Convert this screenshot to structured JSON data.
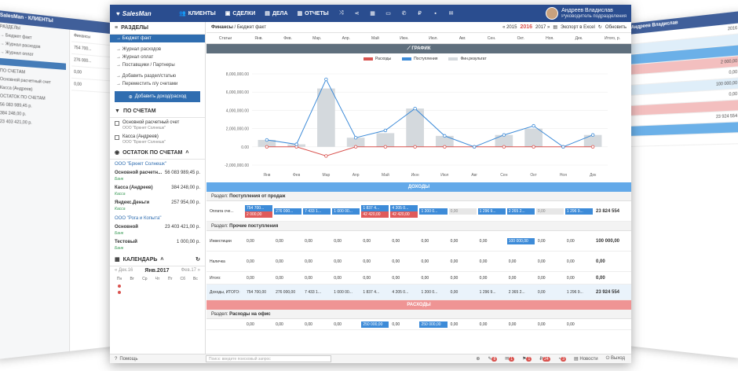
{
  "app": {
    "brand": "SalesMan"
  },
  "nav": [
    {
      "label": "КЛИЕНТЫ",
      "icon": "users-icon"
    },
    {
      "label": "СДЕЛКИ",
      "icon": "briefcase-icon"
    },
    {
      "label": "ДЕЛА",
      "icon": "book-icon"
    },
    {
      "label": "ОТЧЕТЫ",
      "icon": "chart-icon"
    }
  ],
  "user": {
    "name": "Андреев Владислав",
    "role": "Руководитель подразделения"
  },
  "sidebar": {
    "sections_title": "РАЗДЕЛЫ",
    "items": [
      "→ Бюджет факт",
      "→ Журнал расходов",
      "→ Журнал оплат",
      "→ Поставщики / Партнеры",
      "→ Добавить раздел/статью",
      "→ Переместить п/у счетами"
    ],
    "add_button": "Добавить доход/расход",
    "accounts_title": "ПО СЧЕТАМ",
    "accounts": [
      {
        "name": "Основной расчетный счет",
        "org": "ООО \"Бркнет Солнешк\""
      },
      {
        "name": "Касса (Андреев)",
        "org": "ООО \"Бркнет Солнешк\""
      }
    ],
    "balance_title": "ОСТАТОК ПО СЧЕТАМ",
    "orgs": [
      {
        "name": "ООО \"Бркнет Солнешк\"",
        "rows": [
          {
            "label": "Основной расчетн...",
            "value": "56 083 989,45 р.",
            "sub": "Банк"
          },
          {
            "label": "Касса (Андреев)",
            "value": "384 248,00 р.",
            "sub": "Касса"
          },
          {
            "label": "Яндекс.Деньги",
            "value": "257 954,00 р.",
            "sub": "Касса"
          }
        ]
      },
      {
        "name": "ООО \"Рога и Копыта\"",
        "rows": [
          {
            "label": "Основной",
            "value": "23 403 421,00 р.",
            "sub": "Банк"
          },
          {
            "label": "Тестовый",
            "value": "1 000,00 р.",
            "sub": "Банк"
          }
        ]
      }
    ],
    "calendar_title": "КАЛЕНДАРЬ",
    "calendar": {
      "prev": "« Дек.16",
      "month": "Янв.2017",
      "next": "Фев.17 »",
      "days": [
        "Пн",
        "Вт",
        "Ср",
        "Чт",
        "Пт",
        "Сб",
        "Вс"
      ]
    }
  },
  "breadcrumb": {
    "section": "Финансы",
    "page": "Бюджет факт"
  },
  "years": {
    "prev": "« 2015",
    "current": "2016",
    "next": "2017 »"
  },
  "toolbar": {
    "export": "Экспорт в Excel",
    "refresh": "Обновить"
  },
  "table": {
    "first_header": "Статьи",
    "months": [
      "Янв.",
      "Фев.",
      "Мар.",
      "Апр.",
      "Май",
      "Июн.",
      "Июл.",
      "Авг.",
      "Сен.",
      "Окт.",
      "Ноя.",
      "Дек."
    ],
    "last_header": "Итого, р."
  },
  "graph_title": "ГРАФИК",
  "income_title": "ДОХОДЫ",
  "expense_title": "РАСХОДЫ",
  "chart_data": {
    "type": "line",
    "categories": [
      "Янв",
      "Фев",
      "Мар",
      "Апр",
      "Май",
      "Июн",
      "Июл",
      "Авг",
      "Сен",
      "Окт",
      "Ноя",
      "Дек"
    ],
    "series": [
      {
        "name": "Расходы",
        "type": "line",
        "color": "#d9534f",
        "values": [
          0,
          0,
          -1000000,
          0,
          0,
          0,
          0,
          0,
          0,
          0,
          0,
          0
        ]
      },
      {
        "name": "Поступления",
        "type": "line",
        "color": "#3d8bd8",
        "values": [
          755000,
          276000,
          7400000,
          1000000,
          1800000,
          4200000,
          1200000,
          0,
          1300000,
          2300000,
          0,
          1300000
        ]
      },
      {
        "name": "Фин.результат",
        "type": "bar",
        "color": "#d4d9dd",
        "values": [
          755000,
          276000,
          6400000,
          1000000,
          1500000,
          4200000,
          1200000,
          0,
          1300000,
          2000000,
          0,
          1300000
        ]
      }
    ],
    "yticks": [
      "8,000,000.00",
      "6,000,000.00",
      "4,000,000.00",
      "2,000,000.00",
      "0.00",
      "-2,000,000.00"
    ],
    "ylim": [
      -2000000,
      8000000
    ]
  },
  "income": {
    "section1": "Поступления от продаж",
    "oplata_label": "Оплата сче...",
    "oplata_top": [
      "754 700...",
      "276 000...",
      "7 433 1...",
      "1 000 00...",
      "1 837 4...",
      "4 205 0...",
      "1 200 0...",
      "0,00",
      "1 296 9...",
      "2 265 2...",
      "0,00",
      "1 296 9..."
    ],
    "oplata_bot": [
      "2 000,00",
      "",
      "",
      "",
      "42 420,00",
      "42 420,00",
      "",
      "",
      "",
      "",
      "",
      ""
    ],
    "oplata_total": "23 824 554",
    "section2": "Прочие поступления",
    "invest_label": "Инвестиции",
    "invest_top": [
      "0,00",
      "0,00",
      "0,00",
      "0,00",
      "0,00",
      "0,00",
      "0,00",
      "0,00",
      "0,00",
      "100 000,00",
      "0,00",
      "0,00"
    ],
    "invest_total": "100 000,00",
    "cash_label": "Наличка",
    "cash_top": [
      "0,00",
      "0,00",
      "0,00",
      "0,00",
      "0,00",
      "0,00",
      "0,00",
      "0,00",
      "0,00",
      "0,00",
      "0,00",
      "0,00"
    ],
    "cash_total": "0,00",
    "itogo_label": "Итого:",
    "itogo": [
      "0,00",
      "0,00",
      "0,00",
      "0,00",
      "0,00",
      "0,00",
      "0,00",
      "0,00",
      "0,00",
      "0,00",
      "0,00",
      "0,00"
    ],
    "itogo_total": "0,00",
    "grand_label": "Доходы, ИТОГО:",
    "grand": [
      "754 700,00",
      "276 000,00",
      "7 433 1...",
      "1 000 00...",
      "1 837 4...",
      "4 205 0...",
      "1 200 0...",
      "0,00",
      "1 296 9...",
      "2 365 2...",
      "0,00",
      "1 296 9..."
    ],
    "grand_total": "23 924 554"
  },
  "expenses": {
    "section1": "Расходы на офис",
    "row": [
      "0,00",
      "0,00",
      "0,00",
      "0,00",
      "250 000,00",
      "0,00",
      "250 000,00",
      "0,00",
      "0,00",
      "0,00",
      "0,00",
      "0,00"
    ]
  },
  "footer": {
    "help": "Помощь",
    "search_placeholder": "Поиск: введите поисковый запрос",
    "news": "Новости",
    "logout": "Выход",
    "badges": [
      "8",
      "1",
      "1",
      "24",
      "3"
    ]
  }
}
